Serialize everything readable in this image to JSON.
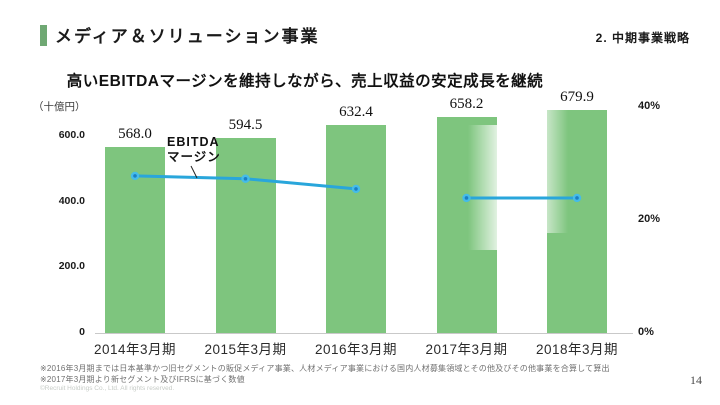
{
  "header": {
    "title": "メディア＆ソリューション事業",
    "section_label": "2. 中期事業戦略",
    "accent_color": "#6FA873"
  },
  "subtitle": "高いEBITDAマージンを維持しながら、売上収益の安定成長を継続",
  "chart_data": {
    "type": "bar",
    "title": "高いEBITDAマージンを維持しながら、売上収益の安定成長を継続",
    "unit_label": "（十億円）",
    "categories": [
      "2014年3月期",
      "2015年3月期",
      "2016年3月期",
      "2017年3月期",
      "2018年3月期"
    ],
    "series": [
      {
        "name": "売上収益",
        "type": "bar",
        "axis": "left",
        "values": [
          568.0,
          594.5,
          632.4,
          658.2,
          679.9
        ],
        "value_labels": [
          "568.0",
          "594.5",
          "632.4",
          "658.2",
          "679.9"
        ],
        "color": "#7EC57E"
      },
      {
        "name": "EBITDAマージン",
        "type": "line",
        "axis": "right",
        "values": [
          27.8,
          27.3,
          25.5,
          23.9,
          23.9
        ],
        "color": "#29A6DB",
        "marker_fill": "#45BCE8",
        "marker_dot": "#1B7FC4",
        "gap_after_index": 2
      }
    ],
    "left_axis": {
      "min": 0,
      "max": 600,
      "ticks": [
        {
          "label": "600.0",
          "value": 600
        },
        {
          "label": "400.0",
          "value": 400
        },
        {
          "label": "200.0",
          "value": 200
        },
        {
          "label": "0",
          "value": 0
        }
      ]
    },
    "right_axis": {
      "min": 0,
      "max": 40,
      "ticks": [
        {
          "label": "40%",
          "value": 40
        },
        {
          "label": "20%",
          "value": 20
        },
        {
          "label": "0%",
          "value": 0
        }
      ]
    },
    "line_annotation": {
      "line1": "EBITDA",
      "line2": "マージン"
    },
    "grid": false,
    "legend_position": "annotation"
  },
  "footnotes": [
    "※2016年3月期までは日本基準かつ旧セグメントの販促メディア事業、人材メディア事業における国内人材募集領域とその他及びその他事業を合算して算出",
    "※2017年3月期より新セグメント及びIFRSに基づく数値"
  ],
  "copyright": "©Recruit Holdings Co., Ltd. All rights reserved.",
  "page_number": "14"
}
